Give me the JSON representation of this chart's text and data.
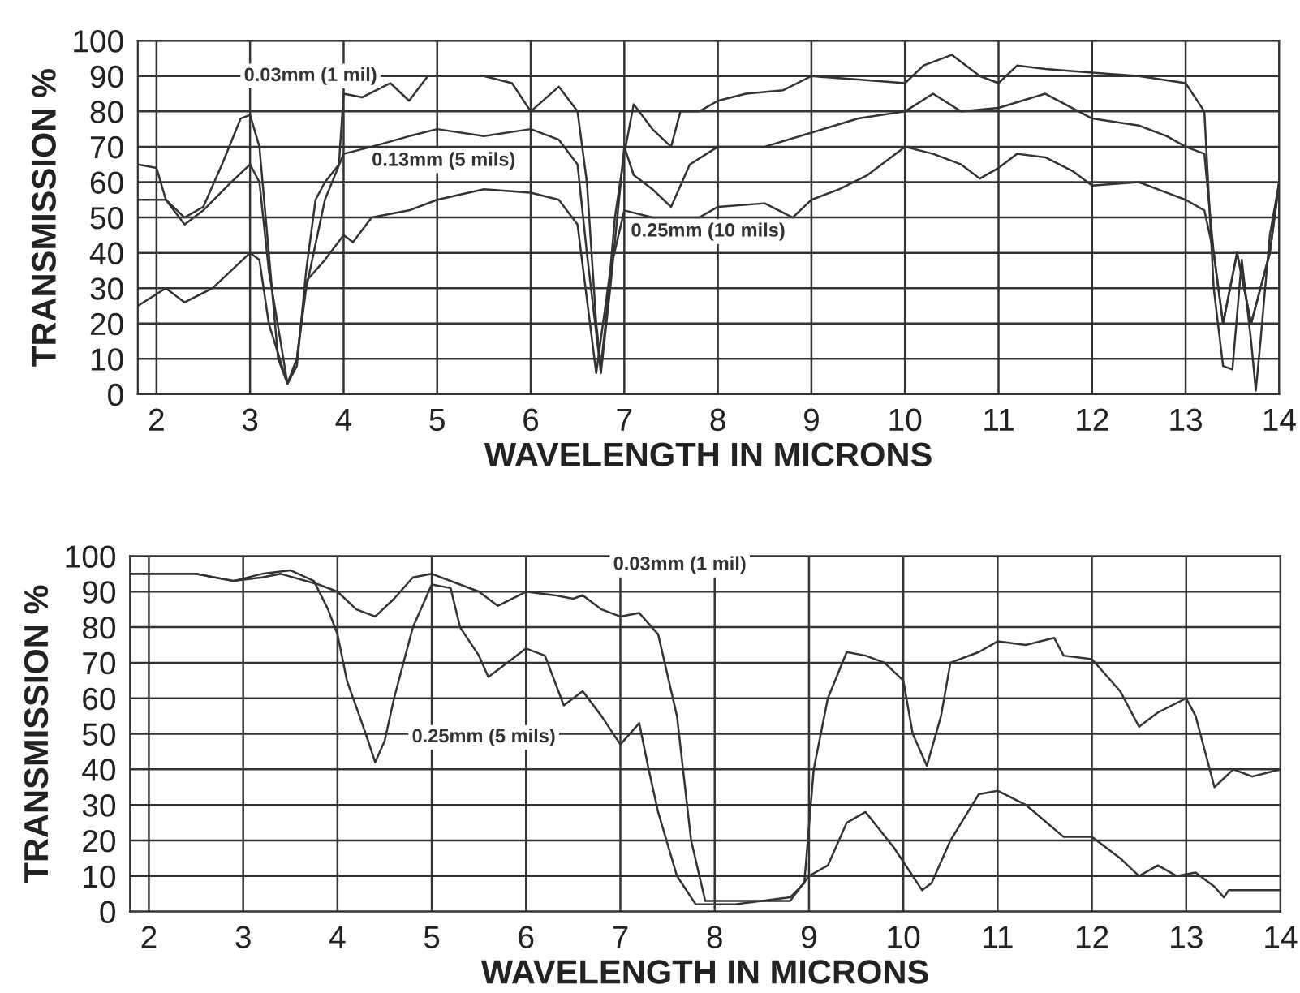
{
  "chart_data": [
    {
      "type": "line",
      "xlabel": "WAVELENGTH IN MICRONS",
      "ylabel": "TRANSMISSION %",
      "xlim": [
        1.8,
        14
      ],
      "ylim": [
        0,
        100
      ],
      "xticks": [
        2,
        3,
        4,
        5,
        6,
        7,
        8,
        9,
        10,
        11,
        12,
        13,
        14
      ],
      "yticks": [
        0,
        10,
        20,
        30,
        40,
        50,
        60,
        70,
        80,
        90,
        100
      ],
      "grid": true,
      "legend": false,
      "marker": "none",
      "line_style": "solid",
      "series": [
        {
          "name": "0.03mm (1 mil)",
          "color": "#333333",
          "x": [
            1.8,
            2.0,
            2.1,
            2.3,
            2.5,
            2.7,
            2.9,
            3.0,
            3.1,
            3.2,
            3.3,
            3.4,
            3.5,
            3.6,
            3.7,
            3.8,
            3.95,
            4.0,
            4.2,
            4.5,
            4.7,
            4.9,
            5.2,
            5.5,
            5.8,
            6.0,
            6.3,
            6.5,
            6.6,
            6.7,
            6.75,
            6.8,
            6.9,
            7.0,
            7.1,
            7.3,
            7.5,
            7.6,
            7.8,
            8.0,
            8.3,
            8.7,
            9.0,
            9.5,
            10.0,
            10.2,
            10.5,
            10.8,
            11.0,
            11.2,
            11.5,
            12.0,
            12.5,
            13.0,
            13.2,
            13.3,
            13.4,
            13.5,
            13.6,
            13.7,
            13.75,
            13.8,
            13.9,
            14.0
          ],
          "values": [
            65,
            64,
            55,
            50,
            53,
            65,
            78,
            79,
            70,
            40,
            10,
            3,
            8,
            35,
            55,
            60,
            65,
            85,
            84,
            88,
            83,
            90,
            90,
            90,
            88,
            80,
            87,
            80,
            60,
            20,
            8,
            20,
            50,
            68,
            82,
            75,
            70,
            80,
            80,
            83,
            85,
            86,
            90,
            89,
            88,
            93,
            96,
            90,
            88,
            93,
            92,
            91,
            90,
            88,
            80,
            30,
            8,
            7,
            38,
            15,
            1,
            15,
            45,
            60
          ]
        },
        {
          "name": "0.13mm (5 mils)",
          "color": "#333333",
          "x": [
            1.8,
            2.1,
            2.3,
            2.5,
            2.8,
            3.0,
            3.1,
            3.2,
            3.4,
            3.5,
            3.6,
            3.8,
            4.0,
            4.3,
            4.7,
            5.0,
            5.5,
            6.0,
            6.3,
            6.5,
            6.6,
            6.75,
            6.85,
            7.0,
            7.1,
            7.3,
            7.5,
            7.7,
            8.0,
            8.5,
            9.0,
            9.5,
            10.0,
            10.3,
            10.6,
            11.0,
            11.5,
            12.0,
            12.5,
            12.8,
            13.0,
            13.2,
            13.3,
            13.4,
            13.55,
            13.7,
            13.9,
            14.0
          ],
          "values": [
            55,
            55,
            48,
            52,
            60,
            65,
            60,
            35,
            3,
            10,
            30,
            55,
            68,
            70,
            73,
            75,
            73,
            75,
            72,
            65,
            40,
            6,
            30,
            70,
            62,
            58,
            53,
            65,
            70,
            70,
            74,
            78,
            80,
            85,
            80,
            81,
            85,
            78,
            76,
            73,
            70,
            68,
            40,
            20,
            40,
            20,
            40,
            60
          ]
        },
        {
          "name": "0.25mm (10 mils)",
          "color": "#333333",
          "x": [
            1.8,
            2.1,
            2.3,
            2.6,
            2.8,
            3.0,
            3.1,
            3.2,
            3.4,
            3.5,
            3.6,
            3.8,
            4.0,
            4.1,
            4.3,
            4.7,
            5.0,
            5.5,
            6.0,
            6.3,
            6.5,
            6.7,
            6.85,
            7.0,
            7.3,
            7.6,
            7.8,
            8.0,
            8.5,
            8.8,
            9.0,
            9.3,
            9.6,
            10.0,
            10.3,
            10.6,
            10.8,
            11.0,
            11.2,
            11.5,
            11.8,
            12.0,
            12.5,
            12.8,
            13.0,
            13.2,
            13.3,
            13.4,
            13.55,
            13.7,
            13.9,
            14.0
          ],
          "values": [
            25,
            30,
            26,
            30,
            35,
            40,
            38,
            20,
            3,
            10,
            32,
            38,
            45,
            43,
            50,
            52,
            55,
            58,
            57,
            55,
            48,
            6,
            35,
            52,
            50,
            50,
            50,
            53,
            54,
            50,
            55,
            58,
            62,
            70,
            68,
            65,
            61,
            64,
            68,
            67,
            63,
            59,
            60,
            57,
            55,
            52,
            40,
            20,
            40,
            20,
            40,
            60
          ]
        }
      ]
    },
    {
      "type": "line",
      "xlabel": "WAVELENGTH IN MICRONS",
      "ylabel": "TRANSMISSION %",
      "xlim": [
        1.8,
        14
      ],
      "ylim": [
        0,
        100
      ],
      "xticks": [
        2,
        3,
        4,
        5,
        6,
        7,
        8,
        9,
        10,
        11,
        12,
        13,
        14
      ],
      "yticks": [
        0,
        10,
        20,
        30,
        40,
        50,
        60,
        70,
        80,
        90,
        100
      ],
      "grid": true,
      "legend": false,
      "marker": "none",
      "line_style": "solid",
      "series": [
        {
          "name": "0.03mm (1 mil)",
          "color": "#333333",
          "x": [
            1.8,
            2.5,
            2.9,
            3.2,
            3.4,
            3.8,
            4.0,
            4.2,
            4.4,
            4.6,
            4.8,
            5.0,
            5.3,
            5.5,
            5.7,
            6.0,
            6.3,
            6.5,
            6.6,
            6.8,
            7.0,
            7.2,
            7.4,
            7.6,
            7.75,
            7.9,
            8.2,
            8.5,
            8.8,
            8.95,
            9.05,
            9.2,
            9.4,
            9.6,
            9.8,
            10.0,
            10.1,
            10.25,
            10.4,
            10.5,
            10.8,
            11.0,
            11.3,
            11.6,
            11.7,
            12.0,
            12.3,
            12.5,
            12.7,
            13.0,
            13.1,
            13.2,
            13.3,
            13.5,
            13.7,
            14.0
          ],
          "values": [
            95,
            95,
            93,
            94,
            95,
            92,
            90,
            85,
            83,
            88,
            94,
            95,
            92,
            90,
            86,
            90,
            89,
            88,
            89,
            85,
            83,
            84,
            78,
            55,
            20,
            3,
            3,
            3,
            4,
            8,
            40,
            60,
            73,
            72,
            70,
            65,
            50,
            41,
            55,
            70,
            73,
            76,
            75,
            77,
            72,
            71,
            62,
            52,
            56,
            60,
            55,
            45,
            35,
            40,
            38,
            40
          ]
        },
        {
          "name": "0.25mm (5 mils)",
          "color": "#333333",
          "x": [
            1.8,
            2.5,
            2.9,
            3.2,
            3.5,
            3.75,
            3.9,
            4.0,
            4.1,
            4.3,
            4.4,
            4.5,
            4.6,
            4.8,
            5.0,
            5.2,
            5.3,
            5.5,
            5.6,
            5.8,
            6.0,
            6.2,
            6.4,
            6.6,
            6.8,
            7.0,
            7.2,
            7.3,
            7.4,
            7.6,
            7.8,
            8.2,
            8.5,
            8.8,
            9.0,
            9.2,
            9.4,
            9.6,
            9.9,
            10.1,
            10.2,
            10.3,
            10.5,
            10.8,
            11.0,
            11.3,
            11.7,
            12.0,
            12.3,
            12.5,
            12.7,
            12.9,
            13.1,
            13.3,
            13.4,
            13.45,
            14.0
          ],
          "values": [
            95,
            95,
            93,
            95,
            96,
            93,
            85,
            78,
            65,
            50,
            42,
            48,
            60,
            80,
            92,
            91,
            80,
            72,
            66,
            70,
            74,
            72,
            58,
            62,
            55,
            47,
            53,
            40,
            28,
            10,
            2,
            2,
            3,
            3,
            10,
            13,
            25,
            28,
            18,
            10,
            6,
            8,
            20,
            33,
            34,
            30,
            21,
            21,
            15,
            10,
            13,
            10,
            11,
            7,
            4,
            6,
            6
          ]
        }
      ]
    }
  ]
}
